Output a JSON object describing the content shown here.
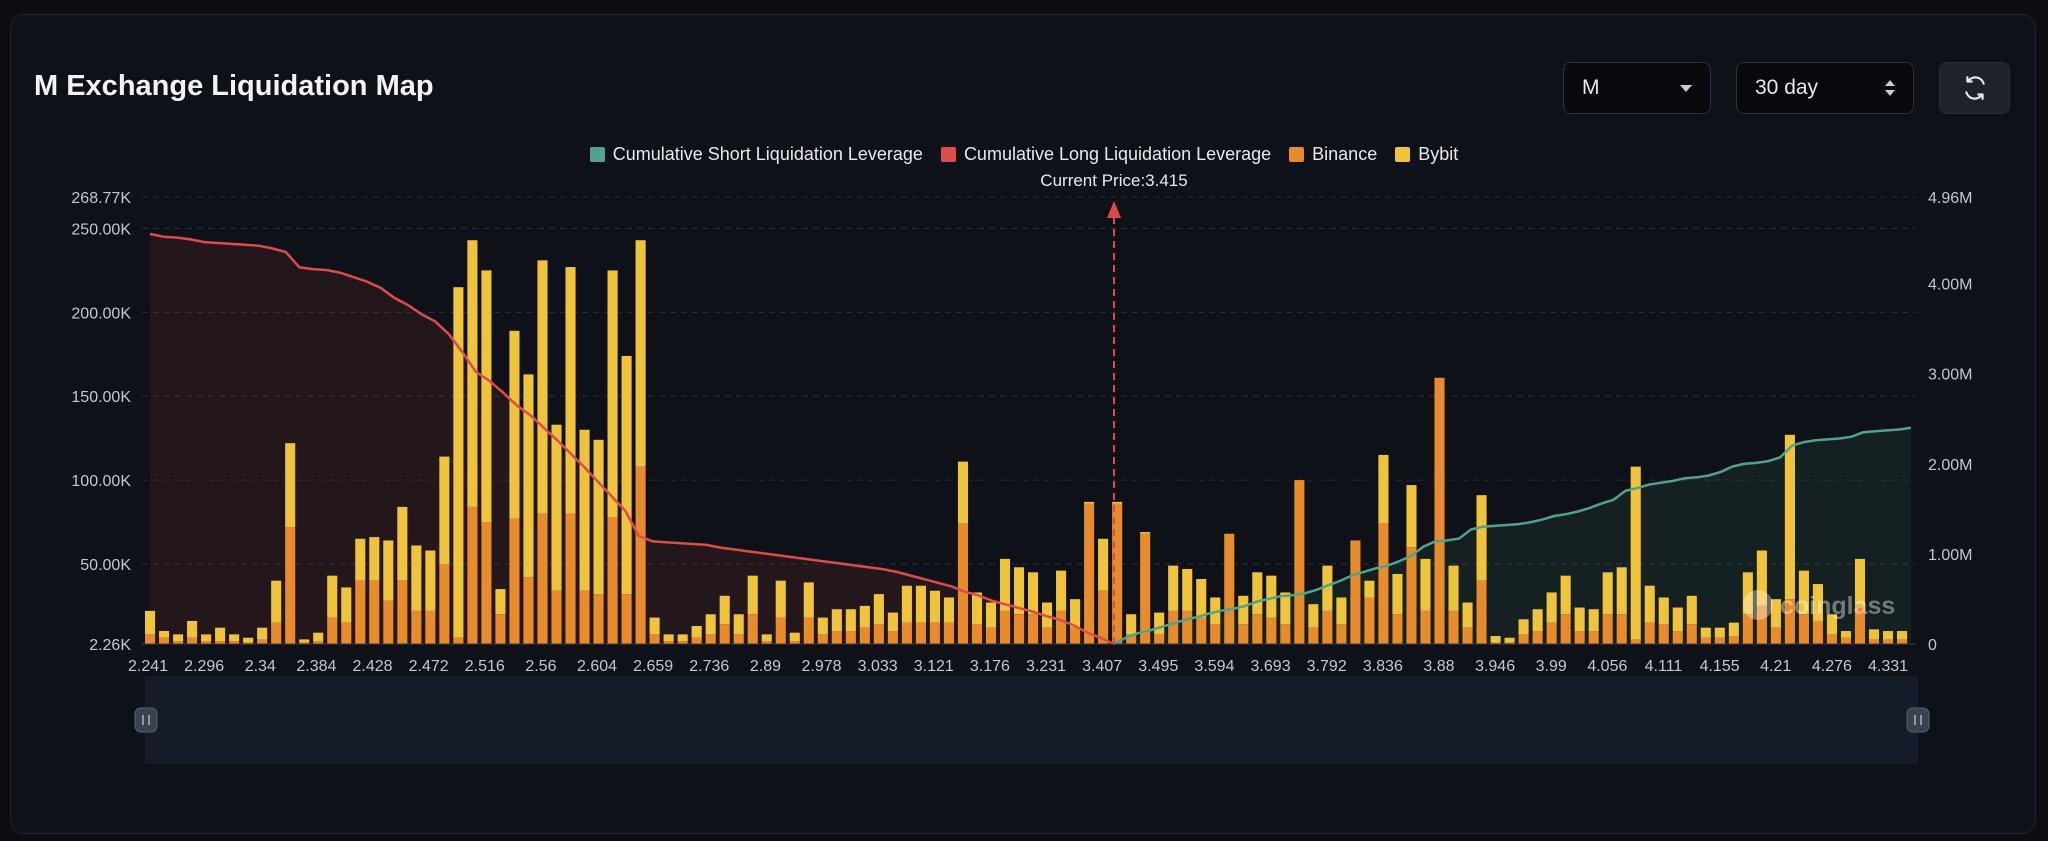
{
  "header": {
    "title": "M Exchange Liquidation Map"
  },
  "controls": {
    "symbol": "M",
    "range": "30 day"
  },
  "icons": {
    "refresh": "refresh-icon",
    "dropdown": "chevron-down-icon",
    "stepper": "up-down-icon"
  },
  "colors": {
    "short": "#4fa38e",
    "long": "#dd4b4b",
    "binance": "#e88b2a",
    "bybit": "#f0c43a"
  },
  "watermark": "coinglass",
  "chart_data": {
    "type": "bar",
    "current_price_label": "Current Price:3.415",
    "current_price": 3.415,
    "legend": [
      "Cumulative Short Liquidation Leverage",
      "Cumulative Long Liquidation Leverage",
      "Binance",
      "Bybit"
    ],
    "legend_placement": "top-center",
    "y_left_ticks": [
      "268.77K",
      "250.00K",
      "200.00K",
      "150.00K",
      "100.00K",
      "50.00K",
      "2.26K"
    ],
    "y_left_range": [
      2260,
      268770
    ],
    "y_right_ticks": [
      "4.96M",
      "4.00M",
      "3.00M",
      "2.00M",
      "1.00M",
      "0"
    ],
    "y_right_range": [
      0,
      4960000
    ],
    "x_tick_labels": [
      "2.241",
      "2.296",
      "2.34",
      "2.384",
      "2.428",
      "2.472",
      "2.516",
      "2.56",
      "2.604",
      "2.659",
      "2.736",
      "2.89",
      "2.978",
      "3.033",
      "3.121",
      "3.176",
      "3.231",
      "3.407",
      "3.495",
      "3.594",
      "3.693",
      "3.792",
      "3.836",
      "3.88",
      "3.946",
      "3.99",
      "4.056",
      "4.111",
      "4.155",
      "4.21",
      "4.276",
      "4.331"
    ],
    "bar_total": [
      22000,
      10000,
      8000,
      16000,
      8000,
      12000,
      8000,
      6000,
      12000,
      40000,
      122000,
      5000,
      9000,
      43000,
      36000,
      65000,
      66000,
      64000,
      84000,
      61000,
      58000,
      114000,
      215000,
      243000,
      225000,
      35000,
      189000,
      163000,
      231000,
      133000,
      227000,
      130000,
      124000,
      225000,
      174000,
      243000,
      18000,
      8000,
      8000,
      13000,
      20000,
      31000,
      20000,
      43000,
      8000,
      40000,
      9000,
      39000,
      18000,
      23000,
      23000,
      25000,
      32000,
      21000,
      37000,
      37000,
      34000,
      30000,
      111000,
      33000,
      27000,
      53000,
      48000,
      45000,
      27000,
      46000,
      29000,
      87000,
      65000,
      87000,
      20000,
      69000,
      21000,
      49000,
      47000,
      41000,
      30000,
      68000,
      31000,
      45000,
      43000,
      33000,
      100000,
      26000,
      49000,
      30000,
      64000,
      40000,
      115000,
      44000,
      97000,
      53000,
      161000,
      49000,
      27000,
      91000,
      7000,
      6000,
      17000,
      23000,
      33000,
      43000,
      24000,
      23000,
      45000,
      48000,
      108000,
      37000,
      30000,
      24000,
      31000,
      12000,
      12000,
      15000,
      45000,
      58000,
      29000,
      127000,
      46000,
      38000,
      20000,
      10000,
      53000,
      11000,
      10000,
      10000
    ],
    "bar_binance": [
      8000,
      6000,
      4000,
      6000,
      4000,
      4000,
      4000,
      3000,
      5000,
      15000,
      72000,
      3000,
      4000,
      18000,
      15000,
      40000,
      40000,
      28000,
      40000,
      22000,
      22000,
      50000,
      6000,
      84000,
      75000,
      20000,
      77000,
      42000,
      80000,
      34000,
      80000,
      34000,
      32000,
      78000,
      32000,
      108000,
      8000,
      4000,
      4000,
      6000,
      8000,
      14000,
      8000,
      20000,
      4000,
      18000,
      4000,
      18000,
      8000,
      10000,
      10000,
      12000,
      14000,
      10000,
      15000,
      15000,
      15000,
      15000,
      74000,
      14000,
      12000,
      22000,
      20000,
      20000,
      12000,
      22000,
      12000,
      86000,
      34000,
      86000,
      8000,
      68000,
      8000,
      22000,
      22000,
      18000,
      14000,
      68000,
      14000,
      20000,
      18000,
      14000,
      100000,
      12000,
      22000,
      14000,
      64000,
      30000,
      74000,
      20000,
      60000,
      22000,
      161000,
      22000,
      12000,
      40000,
      3000,
      3000,
      8000,
      10000,
      15000,
      20000,
      10000,
      10000,
      20000,
      20000,
      5000,
      15000,
      14000,
      10000,
      14000,
      6000,
      6000,
      7000,
      20000,
      25000,
      12000,
      29000,
      20000,
      16000,
      8000,
      6000,
      25000,
      5000,
      5000,
      5000
    ],
    "cumulative_long": [
      4550000,
      4520000,
      4510000,
      4490000,
      4460000,
      4450000,
      4440000,
      4430000,
      4420000,
      4390000,
      4350000,
      4180000,
      4160000,
      4150000,
      4120000,
      4070000,
      4020000,
      3950000,
      3840000,
      3760000,
      3660000,
      3580000,
      3440000,
      3240000,
      3020000,
      2920000,
      2790000,
      2650000,
      2540000,
      2400000,
      2260000,
      2110000,
      1960000,
      1800000,
      1640000,
      1480000,
      1200000,
      1140000,
      1130000,
      1120000,
      1110000,
      1100000,
      1070000,
      1050000,
      1030000,
      1010000,
      990000,
      970000,
      950000,
      930000,
      910000,
      890000,
      870000,
      850000,
      830000,
      800000,
      760000,
      720000,
      680000,
      640000,
      580000,
      540000,
      480000,
      440000,
      400000,
      360000,
      310000,
      270000,
      210000,
      130000,
      70000,
      0
    ],
    "cumulative_short": [
      0,
      70000,
      120000,
      150000,
      190000,
      230000,
      270000,
      300000,
      340000,
      370000,
      390000,
      420000,
      470000,
      500000,
      530000,
      540000,
      560000,
      600000,
      650000,
      700000,
      760000,
      800000,
      840000,
      870000,
      920000,
      980000,
      1080000,
      1140000,
      1150000,
      1170000,
      1270000,
      1300000,
      1310000,
      1320000,
      1330000,
      1350000,
      1380000,
      1420000,
      1440000,
      1470000,
      1510000,
      1560000,
      1600000,
      1700000,
      1730000,
      1770000,
      1790000,
      1810000,
      1840000,
      1850000,
      1870000,
      1910000,
      1970000,
      2000000,
      2010000,
      2030000,
      2070000,
      2200000,
      2240000,
      2260000,
      2270000,
      2280000,
      2300000,
      2350000,
      2360000,
      2370000,
      2380000,
      2400000
    ]
  }
}
